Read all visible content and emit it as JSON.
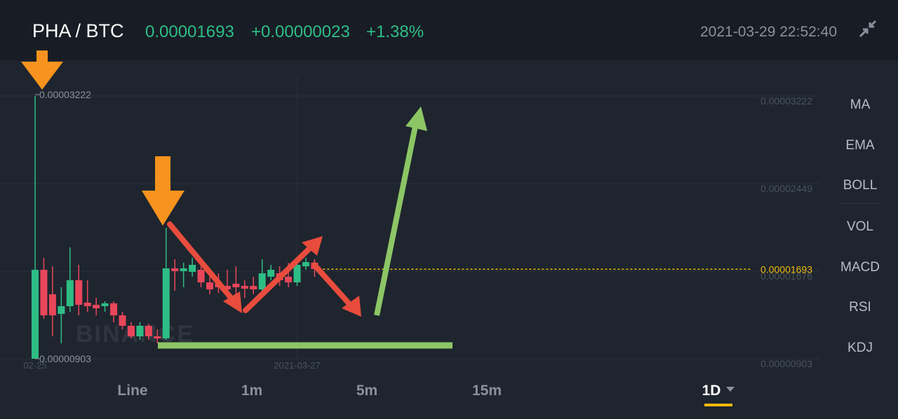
{
  "header": {
    "pair": "PHA / BTC",
    "price": "0.00001693",
    "change": "+0.00000023",
    "change_percent": "+1.38%",
    "datetime": "2021-03-29 22:52:40"
  },
  "chart_data": {
    "type": "candlestick",
    "up_color": "#2ebd85",
    "down_color": "#e8465a",
    "grid": true,
    "watermark": "BINANCE",
    "categories": [
      "02-25",
      null,
      null,
      null,
      null,
      null,
      null,
      null,
      null,
      null,
      null,
      null,
      null,
      null,
      null,
      null,
      null,
      null,
      null,
      null,
      null,
      null,
      null,
      null,
      null,
      null,
      null,
      null,
      null,
      null,
      "2021-03-27",
      null,
      null
    ],
    "open": [
      9.03e-06,
      1.688e-05,
      1.472e-05,
      1.299e-05,
      1.367e-05,
      1.596e-05,
      1.398e-05,
      1.379e-05,
      1.367e-05,
      1.392e-05,
      1.286e-05,
      1.194e-05,
      1.101e-05,
      1.194e-05,
      1.101e-05,
      1.082e-05,
      1.701e-05,
      1.676e-05,
      1.67e-05,
      1.688e-05,
      1.577e-05,
      1.565e-05,
      1.546e-05,
      1.565e-05,
      1.546e-05,
      1.546e-05,
      1.515e-05,
      1.627e-05,
      1.657e-05,
      1.627e-05,
      1.577e-05,
      1.719e-05,
      1.75e-05
    ],
    "high": [
      3.222e-05,
      1.794e-05,
      1.719e-05,
      1.534e-05,
      1.886e-05,
      1.732e-05,
      1.596e-05,
      1.441e-05,
      1.41e-05,
      1.41e-05,
      1.317e-05,
      1.225e-05,
      1.225e-05,
      1.212e-05,
      1.163e-05,
      2.059e-05,
      1.781e-05,
      1.75e-05,
      1.794e-05,
      1.75e-05,
      1.627e-05,
      1.657e-05,
      1.688e-05,
      1.719e-05,
      1.596e-05,
      1.627e-05,
      1.781e-05,
      1.732e-05,
      1.719e-05,
      1.75e-05,
      1.781e-05,
      1.794e-05,
      1.781e-05
    ],
    "low": [
      9.03e-06,
      1.255e-05,
      1.101e-05,
      1.039e-05,
      1.317e-05,
      1.286e-05,
      1.317e-05,
      1.286e-05,
      1.317e-05,
      1.225e-05,
      1.163e-05,
      1.082e-05,
      1.07e-05,
      1.07e-05,
      1.039e-05,
      1.07e-05,
      1.503e-05,
      1.534e-05,
      1.627e-05,
      1.534e-05,
      1.472e-05,
      1.484e-05,
      1.472e-05,
      1.441e-05,
      1.441e-05,
      1.472e-05,
      1.472e-05,
      1.596e-05,
      1.546e-05,
      1.534e-05,
      1.546e-05,
      1.688e-05,
      1.627e-05
    ],
    "close": [
      1.688e-05,
      1.286e-05,
      1.286e-05,
      1.367e-05,
      1.596e-05,
      1.379e-05,
      1.367e-05,
      1.348e-05,
      1.392e-05,
      1.286e-05,
      1.194e-05,
      1.101e-05,
      1.194e-05,
      1.101e-05,
      1.082e-05,
      1.701e-05,
      1.676e-05,
      1.701e-05,
      1.732e-05,
      1.577e-05,
      1.515e-05,
      1.534e-05,
      1.515e-05,
      1.534e-05,
      1.521e-05,
      1.515e-05,
      1.657e-05,
      1.688e-05,
      1.596e-05,
      1.577e-05,
      1.732e-05,
      1.756e-05,
      1.695e-05
    ],
    "ylim": [
      9.03e-06,
      3.222e-05
    ],
    "yticks": [
      {
        "value": 3.222e-05,
        "label": "0.00003222"
      },
      {
        "value": 2.449e-05,
        "label": "0.00002449"
      },
      {
        "value": 1.676e-05,
        "label": "0.00001676"
      },
      {
        "value": 9.03e-06,
        "label": "0.00000903"
      }
    ],
    "max_marker": {
      "value": 3.222e-05,
      "label": "0.00003222"
    },
    "min_marker": {
      "value": 9.03e-06,
      "label": "0.00000903"
    },
    "current_price": {
      "value": 1.693e-05,
      "label": "0.00001693",
      "color": "#f0b90b"
    }
  },
  "indicators": [
    "MA",
    "EMA",
    "BOLL",
    "VOL",
    "MACD",
    "RSI",
    "KDJ"
  ],
  "intervals": [
    "Line",
    "1m",
    "5m",
    "15m",
    "1D"
  ]
}
